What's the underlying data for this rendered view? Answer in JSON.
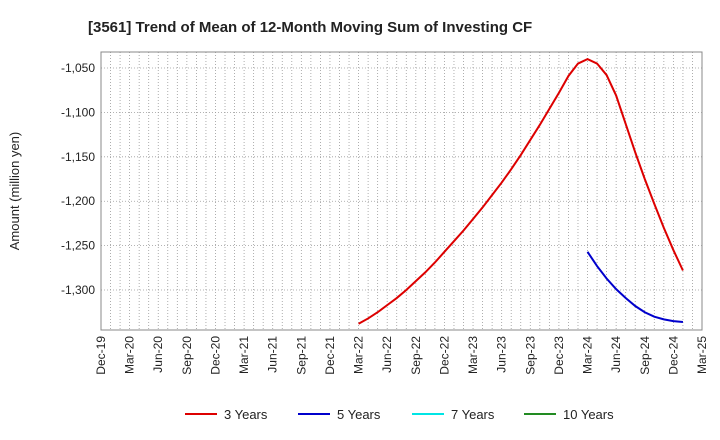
{
  "chart_data": {
    "type": "line",
    "title": "[3561]  Trend of Mean of 12-Month Moving Sum of Investing CF",
    "xlabel": "",
    "ylabel": "Amount (million yen)",
    "ylim": [
      -1345,
      -1032
    ],
    "yticks": [
      -1050,
      -1100,
      -1150,
      -1200,
      -1250,
      -1300
    ],
    "ytick_labels": [
      "-1,050",
      "-1,100",
      "-1,150",
      "-1,200",
      "-1,250",
      "-1,300"
    ],
    "xticks": [
      "Dec-19",
      "Mar-20",
      "Jun-20",
      "Sep-20",
      "Dec-20",
      "Mar-21",
      "Jun-21",
      "Sep-21",
      "Dec-21",
      "Mar-22",
      "Jun-22",
      "Sep-22",
      "Dec-22",
      "Mar-23",
      "Jun-23",
      "Sep-23",
      "Dec-23",
      "Mar-24",
      "Jun-24",
      "Sep-24",
      "Dec-24",
      "Mar-25"
    ],
    "grid": true,
    "legend_position": "bottom",
    "series": [
      {
        "name": "3 Years",
        "color": "#dd0000",
        "start_index": 27,
        "values": [
          -1338,
          -1332,
          -1325,
          -1317,
          -1309,
          -1300,
          -1290,
          -1280,
          -1269,
          -1257,
          -1245,
          -1233,
          -1220,
          -1207,
          -1193,
          -1179,
          -1164,
          -1148,
          -1131,
          -1114,
          -1096,
          -1078,
          -1059,
          -1045,
          -1040,
          -1045,
          -1058,
          -1081,
          -1113,
          -1145,
          -1175,
          -1203,
          -1230,
          -1255,
          -1278
        ]
      },
      {
        "name": "5 Years",
        "color": "#0000cc",
        "start_index": 51,
        "values": [
          -1257,
          -1273,
          -1287,
          -1299,
          -1309,
          -1318,
          -1325,
          -1330,
          -1333,
          -1335,
          -1336
        ]
      },
      {
        "name": "7 Years",
        "color": "#00e5e5",
        "start_index": 0,
        "values": []
      },
      {
        "name": "10 Years",
        "color": "#228b22",
        "start_index": 0,
        "values": []
      }
    ]
  }
}
